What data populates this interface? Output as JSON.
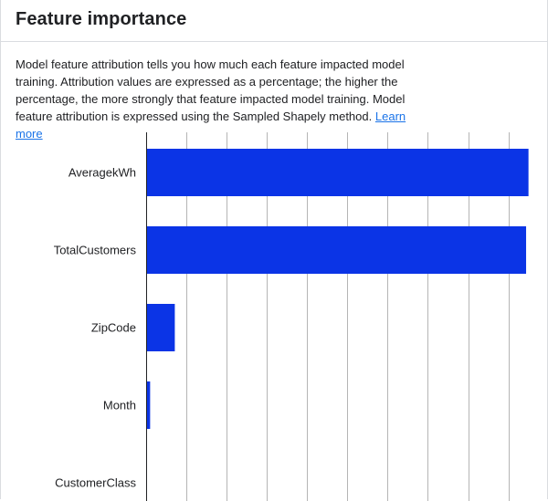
{
  "panel": {
    "title": "Feature importance",
    "description": "Model feature attribution tells you how much each feature impacted model training. Attribution values are expressed as a percentage; the higher the percentage, the more strongly that feature impacted model training. Model feature attribution is expressed using the Sampled Shapely method.",
    "learn_more": "Learn more"
  },
  "colors": {
    "bar": "#0b34e6",
    "grid": "#b5b5b5",
    "axis": "#202124",
    "link": "#1a73e8"
  },
  "chart_data": {
    "type": "bar",
    "orientation": "horizontal",
    "title": "",
    "xlabel": "",
    "ylabel": "",
    "categories": [
      "AveragekWh",
      "TotalCustomers",
      "ZipCode",
      "Month",
      "CustomerClass"
    ],
    "values": [
      48.0,
      47.7,
      3.6,
      0.5,
      0.1
    ],
    "xlim": [
      0,
      48.5
    ],
    "grid": true
  }
}
